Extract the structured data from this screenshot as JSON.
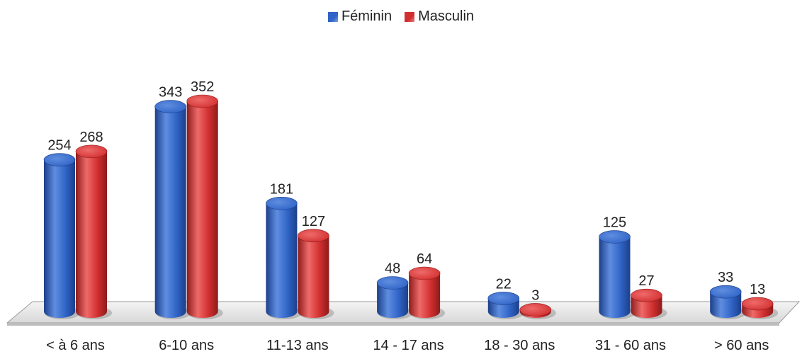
{
  "chart_data": {
    "type": "bar",
    "title": "",
    "xlabel": "",
    "ylabel": "",
    "categories": [
      "< à 6 ans",
      "6-10 ans",
      "11-13 ans",
      "14 - 17 ans",
      "18 - 30 ans",
      "31 - 60 ans",
      "> 60 ans"
    ],
    "series": [
      {
        "name": "Féminin",
        "values": [
          254,
          343,
          181,
          48,
          22,
          125,
          33
        ]
      },
      {
        "name": "Masculin",
        "values": [
          268,
          352,
          127,
          64,
          3,
          27,
          13
        ]
      }
    ],
    "ylim": [
      0,
      352
    ],
    "grid": false,
    "legend_position": "top",
    "style": "3d-cylinder",
    "colors": {
      "feminin": "#2f63c6",
      "masculin": "#d12f2f",
      "floor": "#eeeeee",
      "floor_edge": "#9a9a9a"
    }
  }
}
